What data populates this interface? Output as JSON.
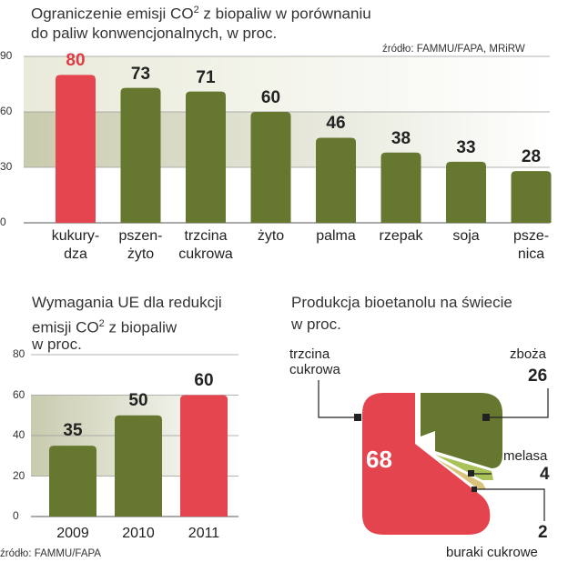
{
  "chart_data": [
    {
      "type": "bar",
      "title": "Ograniczenie emisji CO2 z biopaliw w porównaniu do paliw konwencjonalnych, w proc.",
      "title_line1": "Ograniczenie emisji CO",
      "title_sup": "2",
      "title_line1_end": " z biopaliw w porównaniu",
      "title_line2": "do paliw konwencjonalnych, w proc.",
      "source": "źródło: FAMMU/FAPA, MRiRW",
      "categories": [
        [
          "kukury-",
          "dza"
        ],
        [
          "pszen-",
          "żyto"
        ],
        [
          "trzcina",
          "cukrowa"
        ],
        [
          "żyto"
        ],
        [
          "palma"
        ],
        [
          "rzepak"
        ],
        [
          "soja"
        ],
        [
          "psze-",
          "nica"
        ]
      ],
      "values": [
        80,
        73,
        71,
        60,
        46,
        38,
        33,
        28
      ],
      "ylim": [
        0,
        90
      ],
      "yticks": [
        0,
        30,
        60,
        90
      ],
      "highlight_color": "#e5454f",
      "bar_color": "#66772f",
      "highlight_value_color": "#e03a44"
    },
    {
      "type": "bar",
      "title": "Wymagania UE dla redukcji emisji CO2 z biopaliw w proc.",
      "title_line1": "Wymagania UE dla redukcji",
      "title_line2a": "emisji CO",
      "title_sup": "2",
      "title_line2b": " z biopaliw",
      "title_line3": "w proc.",
      "source": "źródło: FAMMU/FAPA",
      "categories": [
        "2009",
        "2010",
        "2011"
      ],
      "values": [
        35,
        50,
        60
      ],
      "ylim": [
        0,
        80
      ],
      "yticks": [
        0,
        20,
        40,
        60,
        80
      ],
      "highlight_index": 2
    },
    {
      "type": "pie",
      "title": "Produkcja bioetanolu na świecie w proc.",
      "title_line1": "Produkcja bioetanolu na świecie",
      "title_line2": "w proc.",
      "slices": [
        {
          "label": [
            "trzcina",
            "cukrowa"
          ],
          "value": 68,
          "color": "#e4444e"
        },
        {
          "label": [
            "zboża"
          ],
          "value": 26,
          "color": "#66772f"
        },
        {
          "label": [
            "melasa"
          ],
          "value": 4,
          "color": "#a9c35a"
        },
        {
          "label": [
            "buraki cukrowe"
          ],
          "value": 2,
          "color": "#d9c27a"
        }
      ]
    }
  ]
}
